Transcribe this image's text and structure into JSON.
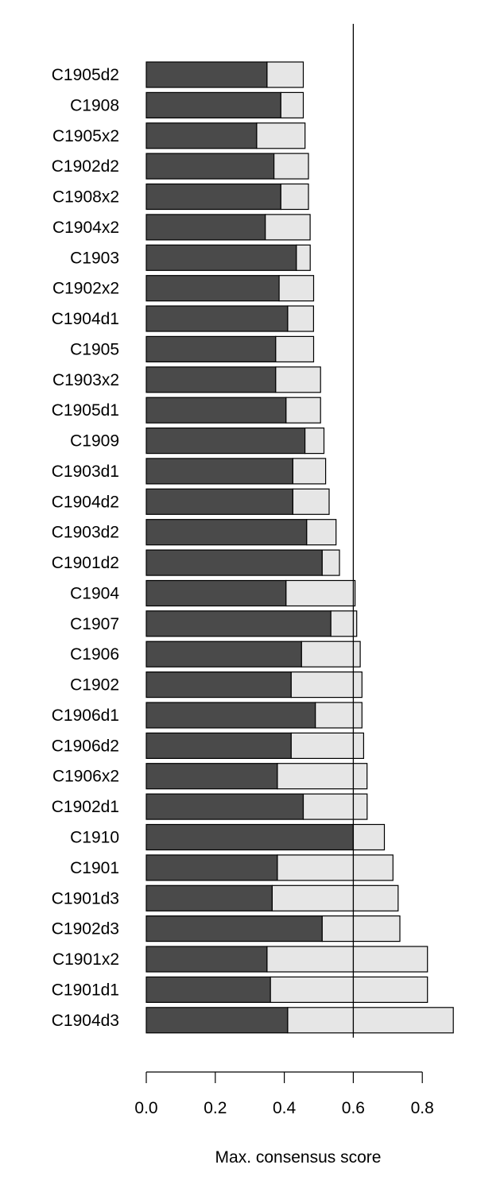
{
  "chart_data": {
    "type": "bar",
    "orientation": "horizontal",
    "stacked": true,
    "categories": [
      "C1905d2",
      "C1908",
      "C1905x2",
      "C1902d2",
      "C1908x2",
      "C1904x2",
      "C1903",
      "C1902x2",
      "C1904d1",
      "C1905",
      "C1903x2",
      "C1905d1",
      "C1909",
      "C1903d1",
      "C1904d2",
      "C1903d2",
      "C1901d2",
      "C1904",
      "C1907",
      "C1906",
      "C1902",
      "C1906d1",
      "C1906d2",
      "C1906x2",
      "C1902d1",
      "C1910",
      "C1901",
      "C1901d3",
      "C1902d3",
      "C1901x2",
      "C1901d1",
      "C1904d3"
    ],
    "series": [
      {
        "color": "#4a4a4a",
        "values": [
          0.35,
          0.39,
          0.32,
          0.37,
          0.39,
          0.345,
          0.435,
          0.385,
          0.41,
          0.375,
          0.375,
          0.405,
          0.46,
          0.425,
          0.425,
          0.465,
          0.51,
          0.405,
          0.535,
          0.45,
          0.42,
          0.49,
          0.42,
          0.38,
          0.455,
          0.6,
          0.38,
          0.365,
          0.51,
          0.35,
          0.36,
          0.41
        ]
      },
      {
        "color": "#e6e6e6",
        "values": [
          0.105,
          0.065,
          0.14,
          0.1,
          0.08,
          0.13,
          0.04,
          0.1,
          0.075,
          0.11,
          0.13,
          0.1,
          0.055,
          0.095,
          0.105,
          0.085,
          0.05,
          0.2,
          0.075,
          0.17,
          0.205,
          0.135,
          0.21,
          0.26,
          0.185,
          0.09,
          0.335,
          0.365,
          0.225,
          0.465,
          0.455,
          0.48
        ]
      }
    ],
    "xlabel": "Max. consensus score",
    "xticks": [
      0,
      0.2,
      0.4,
      0.6,
      0.8
    ],
    "xtick_labels": [
      "0.0",
      "0.2",
      "0.4",
      "0.6",
      "0.8"
    ],
    "xlim": [
      0,
      0.9
    ],
    "reference_line": 0.6,
    "grid": false,
    "legend": "none"
  }
}
